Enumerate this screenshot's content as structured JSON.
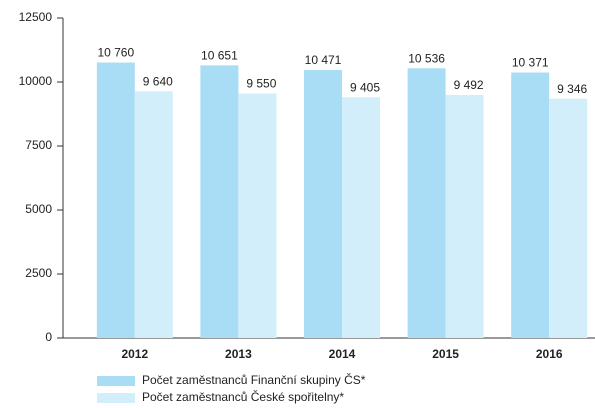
{
  "chart_data": {
    "type": "bar",
    "categories": [
      "2012",
      "2013",
      "2014",
      "2015",
      "2016"
    ],
    "series": [
      {
        "name": "Počet zaměstnanců Finanční skupiny ČS*",
        "color": "#a9dcf5",
        "values": [
          10760,
          10651,
          10471,
          10536,
          10371
        ],
        "value_labels": [
          "10 760",
          "10 651",
          "10 471",
          "10 536",
          "10 371"
        ]
      },
      {
        "name": "Počet zaměstnanců České spořitelny*",
        "color": "#d3eefb",
        "values": [
          9640,
          9550,
          9405,
          9492,
          9346
        ],
        "value_labels": [
          "9 640",
          "9 550",
          "9 405",
          "9 492",
          "9 346"
        ]
      }
    ],
    "ylim": [
      0,
      12500
    ],
    "yticks": [
      0,
      2500,
      5000,
      7500,
      10000,
      12500
    ],
    "grid": false,
    "legend": "bottom"
  }
}
